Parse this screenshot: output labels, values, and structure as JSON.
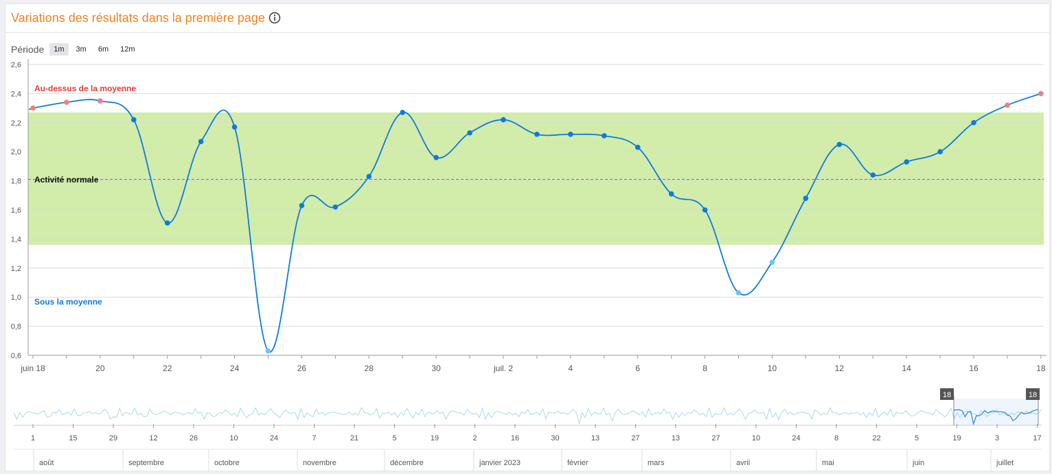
{
  "title": "Variations des résultats dans la première page",
  "info_icon": "info-circle-icon",
  "period": {
    "label": "Période",
    "options": [
      "1m",
      "3m",
      "6m",
      "12m"
    ],
    "selected": "1m"
  },
  "colors": {
    "title": "#f0821e",
    "line": "#0a7be0",
    "point_normal": "#0a7be0",
    "point_above": "#f07f7f",
    "point_below": "#6cc6f5",
    "band": "#d2ecaa",
    "above_label": "#e53935",
    "below_label": "#0a7be0"
  },
  "chart_data": {
    "type": "line",
    "y_ticks": [
      "2,6",
      "2,4",
      "2,2",
      "2,0",
      "1,8",
      "1,6",
      "1,4",
      "1,2",
      "1,0",
      "0,8",
      "0,6"
    ],
    "ylim": [
      0.6,
      2.6
    ],
    "x_tick_labels": [
      "juin 18",
      "20",
      "22",
      "24",
      "26",
      "28",
      "30",
      "juil. 2",
      "4",
      "6",
      "8",
      "10",
      "12",
      "14",
      "16",
      "18"
    ],
    "x": [
      "2023-06-18",
      "2023-06-19",
      "2023-06-20",
      "2023-06-21",
      "2023-06-22",
      "2023-06-23",
      "2023-06-24",
      "2023-06-25",
      "2023-06-26",
      "2023-06-27",
      "2023-06-28",
      "2023-06-29",
      "2023-06-30",
      "2023-07-01",
      "2023-07-02",
      "2023-07-03",
      "2023-07-04",
      "2023-07-05",
      "2023-07-06",
      "2023-07-07",
      "2023-07-08",
      "2023-07-09",
      "2023-07-10",
      "2023-07-11",
      "2023-07-12",
      "2023-07-13",
      "2023-07-14",
      "2023-07-15",
      "2023-07-16",
      "2023-07-17",
      "2023-07-18"
    ],
    "values": [
      2.3,
      2.34,
      2.35,
      2.22,
      1.51,
      2.07,
      2.17,
      0.63,
      1.63,
      1.62,
      1.83,
      2.27,
      1.96,
      2.13,
      2.22,
      2.12,
      2.12,
      2.11,
      2.03,
      1.71,
      1.6,
      1.03,
      1.24,
      1.68,
      2.05,
      1.84,
      1.93,
      2.0,
      2.2,
      2.32,
      2.4
    ],
    "normal_band": [
      1.36,
      2.27
    ],
    "average": 1.81,
    "zones": {
      "above": "Au-dessus de la moyenne",
      "normal": "Activité normale",
      "below": "Sous la moyenne"
    },
    "grid": true
  },
  "navigator": {
    "day_ticks": [
      "1",
      "15",
      "29",
      "12",
      "26",
      "10",
      "24",
      "7",
      "21",
      "5",
      "19",
      "2",
      "16",
      "30",
      "13",
      "27",
      "13",
      "27",
      "10",
      "24",
      "8",
      "22",
      "5",
      "19",
      "3",
      "17"
    ],
    "months": [
      "août",
      "septembre",
      "octobre",
      "novembre",
      "décembre",
      "janvier 2023",
      "février",
      "mars",
      "avril",
      "mai",
      "juin",
      "juillet"
    ],
    "handle_start": "18",
    "handle_end": "18"
  }
}
